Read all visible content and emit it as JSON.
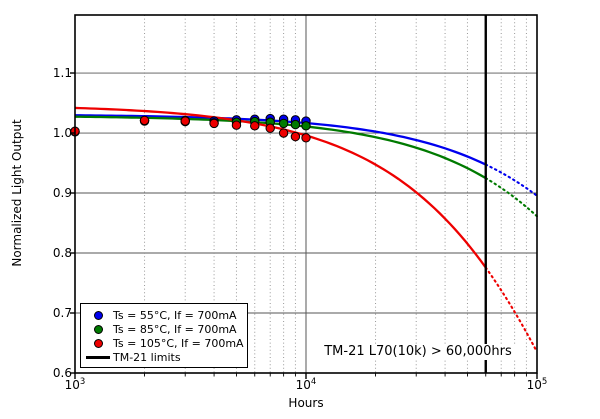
{
  "chart_data": {
    "type": "line",
    "title": "",
    "xlabel": "Hours",
    "ylabel": "Normalized Light Output",
    "x_scale": "log",
    "xlim": [
      1000,
      100000
    ],
    "ylim": [
      0.6,
      1.1967
    ],
    "grid": {
      "horizontal_major": "solid",
      "vertical_major": "solid",
      "vertical_minor": "dotted"
    },
    "yticks": [
      0.6,
      0.7,
      0.8,
      0.9,
      1.0,
      1.1
    ],
    "ytick_labels": [
      "0.6",
      "0.7",
      "0.8",
      "0.9",
      "1.0",
      "1.1"
    ],
    "xtick_labels": [
      {
        "base": "10",
        "exp": "3",
        "value": 1000
      },
      {
        "base": "10",
        "exp": "4",
        "value": 10000
      },
      {
        "base": "10",
        "exp": "5",
        "value": 100000
      }
    ],
    "xminor_mantissas": [
      2,
      3,
      4,
      5,
      6,
      7,
      8,
      9
    ],
    "tm21_limit_hours": 60000,
    "solid_to_hours": 60000,
    "dotted_to_hours": 100000,
    "annotation": "TM-21 L70(10k) > 60,000hrs",
    "series": [
      {
        "name": "Ts = 55°C, If = 700mA",
        "color": "#0000EE",
        "fit": {
          "model": "exponential",
          "B": 1.031,
          "alpha_per_hour": 1.41e-06
        },
        "fit_samples": {
          "hours": [
            1000,
            10000,
            60000,
            100000
          ],
          "values": [
            1.03,
            1.017,
            0.947,
            0.895
          ]
        },
        "marker_hours": [
          1000,
          2000,
          3000,
          4000,
          5000,
          6000,
          7000,
          8000,
          9000,
          10000
        ],
        "marker_values": [
          1.002,
          1.021,
          1.021,
          1.02,
          1.022,
          1.023,
          1.024,
          1.023,
          1.022,
          1.02
        ]
      },
      {
        "name": "Ts = 85°C, If = 700mA",
        "color": "#007A00",
        "fit": {
          "model": "exponential",
          "B": 1.029,
          "alpha_per_hour": 1.78e-06
        },
        "fit_samples": {
          "hours": [
            1000,
            10000,
            60000,
            100000
          ],
          "values": [
            1.027,
            1.011,
            0.925,
            0.861
          ]
        },
        "marker_hours": [
          1000,
          2000,
          3000,
          4000,
          5000,
          6000,
          7000,
          8000,
          9000,
          10000
        ],
        "marker_values": [
          1.002,
          1.02,
          1.019,
          1.017,
          1.018,
          1.019,
          1.018,
          1.016,
          1.014,
          1.012
        ]
      },
      {
        "name": "Ts = 105°C, If = 700mA",
        "color": "#EE0000",
        "fit": {
          "model": "exponential",
          "B": 1.047,
          "alpha_per_hour": 5e-06
        },
        "fit_samples": {
          "hours": [
            1000,
            10000,
            60000,
            100000
          ],
          "values": [
            1.042,
            0.996,
            0.776,
            0.635
          ]
        },
        "marker_hours": [
          1000,
          2000,
          3000,
          4000,
          5000,
          6000,
          7000,
          8000,
          9000,
          10000
        ],
        "marker_values": [
          1.003,
          1.021,
          1.02,
          1.016,
          1.013,
          1.012,
          1.008,
          1.0,
          0.994,
          0.992
        ]
      }
    ],
    "legend": {
      "position": "lower-left",
      "limits_label": "TM-21 limits",
      "limits_color": "#000000"
    },
    "colors": {
      "frame": "#000000",
      "grid_major": "#666666",
      "grid_minor": "#999999",
      "tm21_line": "#000000"
    }
  }
}
